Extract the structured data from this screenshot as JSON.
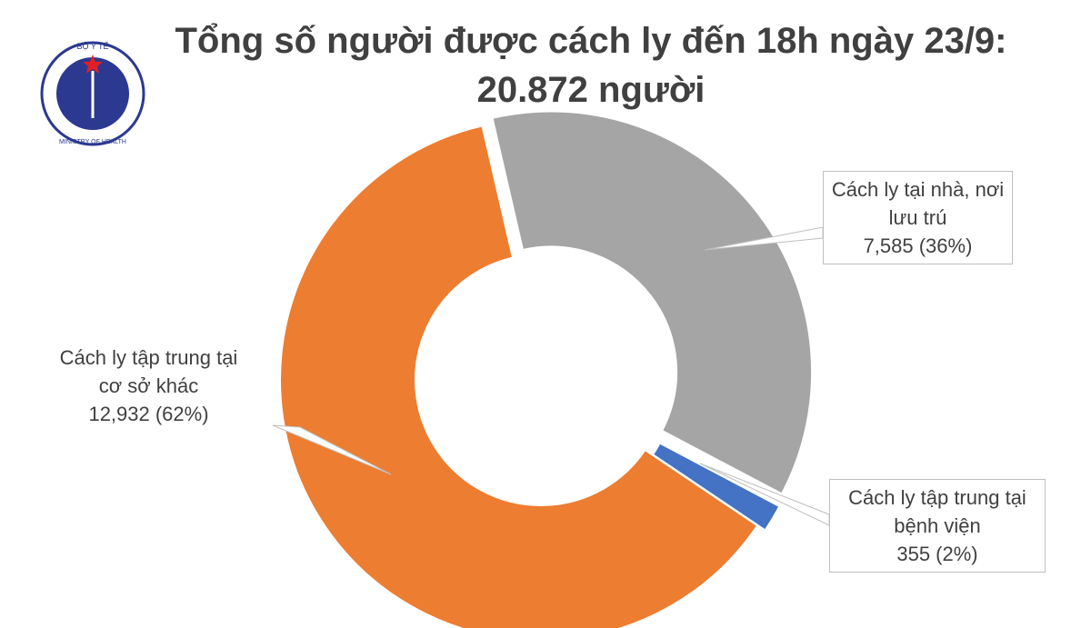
{
  "logo": {
    "top": "BỘ Y TẾ",
    "bottom": "MINISTRY OF HEALTH"
  },
  "chart_data": {
    "type": "pie",
    "donut": true,
    "title": "Tổng số người được cách ly đến 18h ngày 23/9: 20.872 người",
    "categories": [
      "Cách ly tại nhà, nơi lưu trú",
      "Cách ly tập trung tại bệnh viện",
      "Cách ly tập trung tại cơ sở khác"
    ],
    "values": [
      7585,
      355,
      12932
    ],
    "value_labels": [
      "7,585 (36%)",
      "355 (2%)",
      "12,932 (62%)"
    ],
    "colors": [
      "#a5a5a5",
      "#4472c4",
      "#ed7d31"
    ]
  }
}
